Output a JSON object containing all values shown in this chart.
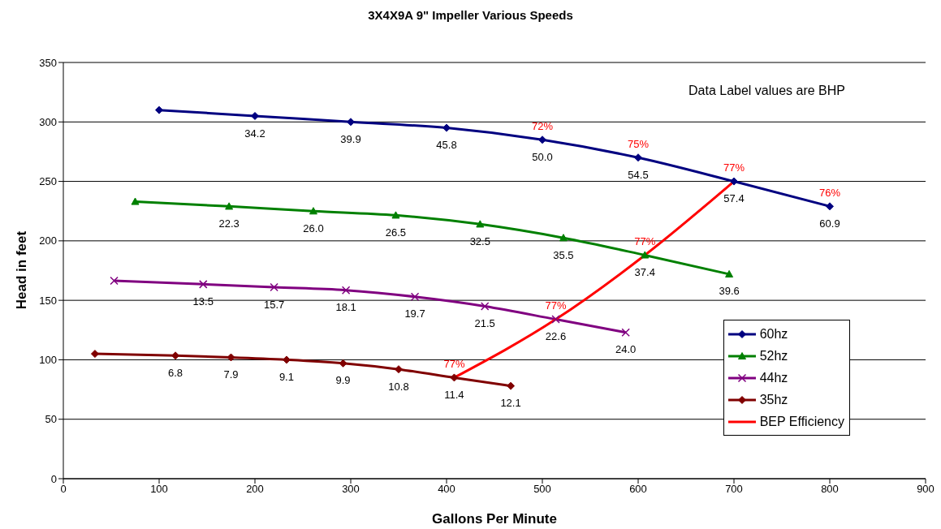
{
  "chart_data": {
    "type": "line",
    "title": "3X4X9A  9\" Impeller  Various Speeds",
    "xlabel": "Gallons Per Minute",
    "ylabel": "Head in feet",
    "xlim": [
      0,
      900
    ],
    "xticks": [
      0,
      100,
      200,
      300,
      400,
      500,
      600,
      700,
      800,
      900
    ],
    "ylim": [
      0,
      350
    ],
    "yticks": [
      0,
      50,
      100,
      150,
      200,
      250,
      300,
      350
    ],
    "grid": "y",
    "legend": "bottom right",
    "series": [
      {
        "name": "60hz",
        "color": "#000080",
        "marker": "diamond",
        "x": [
          100,
          200,
          300,
          400,
          500,
          600,
          700,
          800
        ],
        "values": [
          310,
          305,
          300,
          295,
          285,
          270,
          250,
          229
        ]
      },
      {
        "name": "52hz",
        "color": "#008000",
        "marker": "triangle",
        "x": [
          75,
          173,
          261,
          347,
          435,
          522,
          607,
          695
        ],
        "values": [
          233,
          229,
          225,
          221.5,
          214,
          202.5,
          188,
          172
        ]
      },
      {
        "name": "44hz",
        "color": "#800080",
        "marker": "cross",
        "x": [
          53,
          146,
          220,
          295,
          367,
          440,
          514,
          587
        ],
        "values": [
          166.5,
          163.5,
          161,
          158.5,
          153,
          145,
          134,
          123
        ]
      },
      {
        "name": "35hz",
        "color": "#800000",
        "marker": "diamond",
        "x": [
          33,
          117,
          175,
          233,
          292,
          350,
          408,
          467
        ],
        "values": [
          105,
          103.5,
          102,
          100,
          97,
          92,
          85,
          78
        ]
      },
      {
        "name": "BEP Efficiency",
        "color": "#ff0000",
        "marker": "none",
        "x": [
          408,
          514,
          607,
          700
        ],
        "values": [
          85,
          134,
          188,
          250
        ]
      }
    ],
    "annotations": [
      "Data Label values are BHP",
      {
        "text": "34.2",
        "x": 200,
        "y": 305
      },
      {
        "text": "39.9",
        "x": 300,
        "y": 300
      },
      {
        "text": "45.8",
        "x": 400,
        "y": 295
      },
      {
        "text": "50.0",
        "x": 500,
        "y": 285
      },
      {
        "text": "54.5",
        "x": 600,
        "y": 270
      },
      {
        "text": "57.4",
        "x": 700,
        "y": 250
      },
      {
        "text": "60.9",
        "x": 800,
        "y": 229
      },
      {
        "text": "22.3",
        "x": 173,
        "y": 229
      },
      {
        "text": "26.0",
        "x": 261,
        "y": 225
      },
      {
        "text": "26.5",
        "x": 347,
        "y": 221.5
      },
      {
        "text": "32.5",
        "x": 435,
        "y": 214
      },
      {
        "text": "35.5",
        "x": 522,
        "y": 202.5
      },
      {
        "text": "37.4",
        "x": 607,
        "y": 188
      },
      {
        "text": "39.6",
        "x": 695,
        "y": 172
      },
      {
        "text": "13.5",
        "x": 146,
        "y": 163.5
      },
      {
        "text": "15.7",
        "x": 220,
        "y": 161
      },
      {
        "text": "18.1",
        "x": 295,
        "y": 158.5
      },
      {
        "text": "19.7",
        "x": 367,
        "y": 153
      },
      {
        "text": "21.5",
        "x": 440,
        "y": 145
      },
      {
        "text": "22.6",
        "x": 514,
        "y": 134
      },
      {
        "text": "24.0",
        "x": 587,
        "y": 123
      },
      {
        "text": "6.8",
        "x": 117,
        "y": 103.5
      },
      {
        "text": "7.9",
        "x": 175,
        "y": 102
      },
      {
        "text": "9.1",
        "x": 233,
        "y": 100
      },
      {
        "text": "9.9",
        "x": 292,
        "y": 97
      },
      {
        "text": "10.8",
        "x": 350,
        "y": 92
      },
      {
        "text": "11.4",
        "x": 408,
        "y": 85
      },
      {
        "text": "12.1",
        "x": 467,
        "y": 78
      },
      {
        "text": "72%",
        "x": 500,
        "y": 285
      },
      {
        "text": "75%",
        "x": 600,
        "y": 270
      },
      {
        "text": "77%",
        "x": 700,
        "y": 250
      },
      {
        "text": "76%",
        "x": 800,
        "y": 229
      },
      {
        "text": "77%",
        "x": 607,
        "y": 188
      },
      {
        "text": "77%",
        "x": 514,
        "y": 134
      },
      {
        "text": "77%",
        "x": 408,
        "y": 85
      }
    ]
  }
}
